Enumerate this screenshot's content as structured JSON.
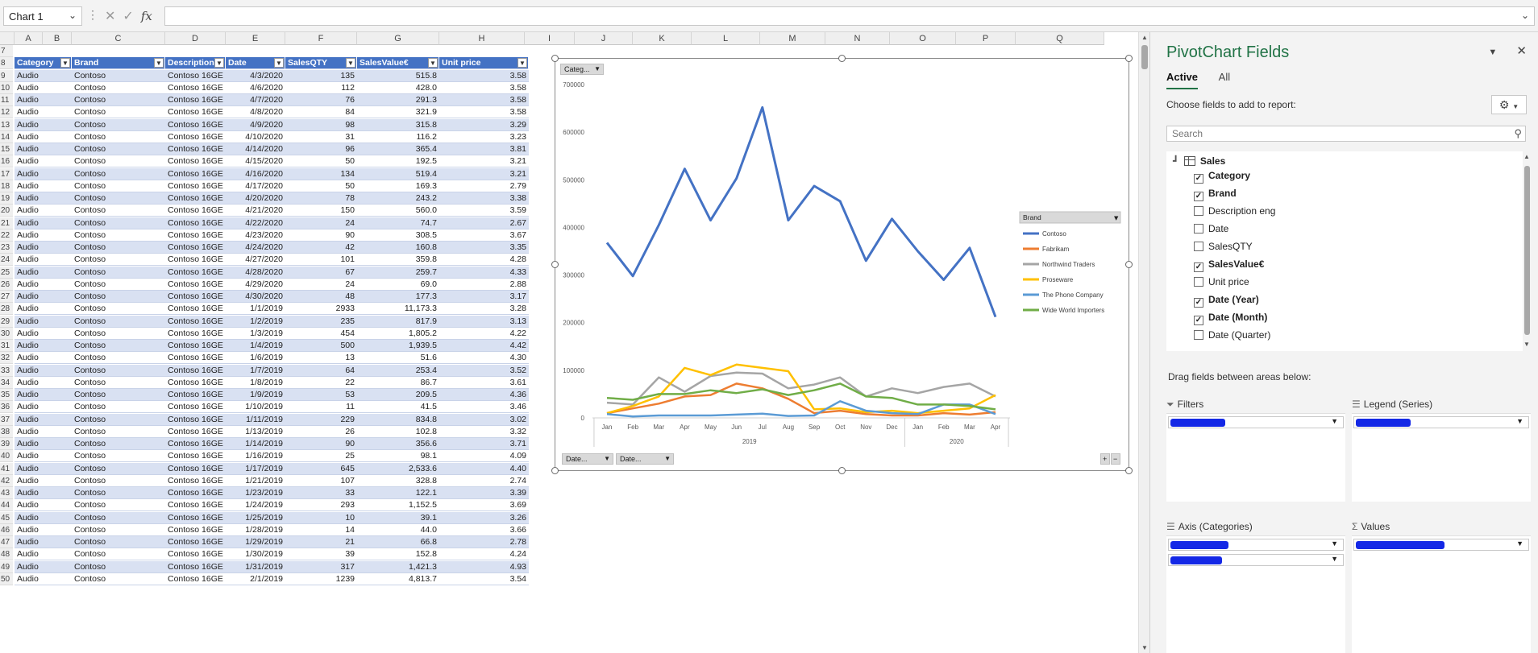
{
  "formula_bar": {
    "name_box": "Chart 1",
    "fx_label": "fx",
    "formula": ""
  },
  "columns": [
    "A",
    "B",
    "C",
    "D",
    "E",
    "F",
    "G",
    "H",
    "I",
    "J",
    "K",
    "L",
    "M",
    "N",
    "O",
    "P",
    "Q"
  ],
  "table": {
    "headers": [
      "Category",
      "Brand",
      "Description",
      "Date",
      "SalesQTY",
      "SalesValue€",
      "Unit price"
    ],
    "rows": [
      [
        "Audio",
        "Contoso",
        "Contoso 16GE",
        "4/3/2020",
        "135",
        "515.8",
        "3.58"
      ],
      [
        "Audio",
        "Contoso",
        "Contoso 16GE",
        "4/6/2020",
        "112",
        "428.0",
        "3.58"
      ],
      [
        "Audio",
        "Contoso",
        "Contoso 16GE",
        "4/7/2020",
        "76",
        "291.3",
        "3.58"
      ],
      [
        "Audio",
        "Contoso",
        "Contoso 16GE",
        "4/8/2020",
        "84",
        "321.9",
        "3.58"
      ],
      [
        "Audio",
        "Contoso",
        "Contoso 16GE",
        "4/9/2020",
        "98",
        "315.8",
        "3.29"
      ],
      [
        "Audio",
        "Contoso",
        "Contoso 16GE",
        "4/10/2020",
        "31",
        "116.2",
        "3.23"
      ],
      [
        "Audio",
        "Contoso",
        "Contoso 16GE",
        "4/14/2020",
        "96",
        "365.4",
        "3.81"
      ],
      [
        "Audio",
        "Contoso",
        "Contoso 16GE",
        "4/15/2020",
        "50",
        "192.5",
        "3.21"
      ],
      [
        "Audio",
        "Contoso",
        "Contoso 16GE",
        "4/16/2020",
        "134",
        "519.4",
        "3.21"
      ],
      [
        "Audio",
        "Contoso",
        "Contoso 16GE",
        "4/17/2020",
        "50",
        "169.3",
        "2.79"
      ],
      [
        "Audio",
        "Contoso",
        "Contoso 16GE",
        "4/20/2020",
        "78",
        "243.2",
        "3.38"
      ],
      [
        "Audio",
        "Contoso",
        "Contoso 16GE",
        "4/21/2020",
        "150",
        "560.0",
        "3.59"
      ],
      [
        "Audio",
        "Contoso",
        "Contoso 16GE",
        "4/22/2020",
        "24",
        "74.7",
        "2.67"
      ],
      [
        "Audio",
        "Contoso",
        "Contoso 16GE",
        "4/23/2020",
        "90",
        "308.5",
        "3.67"
      ],
      [
        "Audio",
        "Contoso",
        "Contoso 16GE",
        "4/24/2020",
        "42",
        "160.8",
        "3.35"
      ],
      [
        "Audio",
        "Contoso",
        "Contoso 16GE",
        "4/27/2020",
        "101",
        "359.8",
        "4.28"
      ],
      [
        "Audio",
        "Contoso",
        "Contoso 16GE",
        "4/28/2020",
        "67",
        "259.7",
        "4.33"
      ],
      [
        "Audio",
        "Contoso",
        "Contoso 16GE",
        "4/29/2020",
        "24",
        "69.0",
        "2.88"
      ],
      [
        "Audio",
        "Contoso",
        "Contoso 16GE",
        "4/30/2020",
        "48",
        "177.3",
        "3.17"
      ],
      [
        "Audio",
        "Contoso",
        "Contoso 16GE",
        "1/1/2019",
        "2933",
        "11,173.3",
        "3.28"
      ],
      [
        "Audio",
        "Contoso",
        "Contoso 16GE",
        "1/2/2019",
        "235",
        "817.9",
        "3.13"
      ],
      [
        "Audio",
        "Contoso",
        "Contoso 16GE",
        "1/3/2019",
        "454",
        "1,805.2",
        "4.22"
      ],
      [
        "Audio",
        "Contoso",
        "Contoso 16GE",
        "1/4/2019",
        "500",
        "1,939.5",
        "4.42"
      ],
      [
        "Audio",
        "Contoso",
        "Contoso 16GE",
        "1/6/2019",
        "13",
        "51.6",
        "4.30"
      ],
      [
        "Audio",
        "Contoso",
        "Contoso 16GE",
        "1/7/2019",
        "64",
        "253.4",
        "3.52"
      ],
      [
        "Audio",
        "Contoso",
        "Contoso 16GE",
        "1/8/2019",
        "22",
        "86.7",
        "3.61"
      ],
      [
        "Audio",
        "Contoso",
        "Contoso 16GE",
        "1/9/2019",
        "53",
        "209.5",
        "4.36"
      ],
      [
        "Audio",
        "Contoso",
        "Contoso 16GE",
        "1/10/2019",
        "11",
        "41.5",
        "3.46"
      ],
      [
        "Audio",
        "Contoso",
        "Contoso 16GE",
        "1/11/2019",
        "229",
        "834.8",
        "3.02"
      ],
      [
        "Audio",
        "Contoso",
        "Contoso 16GE",
        "1/13/2019",
        "26",
        "102.8",
        "3.32"
      ],
      [
        "Audio",
        "Contoso",
        "Contoso 16GE",
        "1/14/2019",
        "90",
        "356.6",
        "3.71"
      ],
      [
        "Audio",
        "Contoso",
        "Contoso 16GE",
        "1/16/2019",
        "25",
        "98.1",
        "4.09"
      ],
      [
        "Audio",
        "Contoso",
        "Contoso 16GE",
        "1/17/2019",
        "645",
        "2,533.6",
        "4.40"
      ],
      [
        "Audio",
        "Contoso",
        "Contoso 16GE",
        "1/21/2019",
        "107",
        "328.8",
        "2.74"
      ],
      [
        "Audio",
        "Contoso",
        "Contoso 16GE",
        "1/23/2019",
        "33",
        "122.1",
        "3.39"
      ],
      [
        "Audio",
        "Contoso",
        "Contoso 16GE",
        "1/24/2019",
        "293",
        "1,152.5",
        "3.69"
      ],
      [
        "Audio",
        "Contoso",
        "Contoso 16GE",
        "1/25/2019",
        "10",
        "39.1",
        "3.26"
      ],
      [
        "Audio",
        "Contoso",
        "Contoso 16GE",
        "1/28/2019",
        "14",
        "44.0",
        "3.66"
      ],
      [
        "Audio",
        "Contoso",
        "Contoso 16GE",
        "1/29/2019",
        "21",
        "66.8",
        "2.78"
      ],
      [
        "Audio",
        "Contoso",
        "Contoso 16GE",
        "1/30/2019",
        "39",
        "152.8",
        "4.24"
      ],
      [
        "Audio",
        "Contoso",
        "Contoso 16GE",
        "1/31/2019",
        "317",
        "1,421.3",
        "4.93"
      ],
      [
        "Audio",
        "Contoso",
        "Contoso 16GE",
        "2/1/2019",
        "1239",
        "4,813.7",
        "3.54"
      ]
    ]
  },
  "chart_data": {
    "type": "line",
    "categories": [
      "Jan",
      "Feb",
      "Mar",
      "Apr",
      "May",
      "Jun",
      "Jul",
      "Aug",
      "Sep",
      "Oct",
      "Nov",
      "Dec",
      "Jan",
      "Feb",
      "Mar",
      "Apr"
    ],
    "year_groups": [
      {
        "label": "2019",
        "count": 12
      },
      {
        "label": "2020",
        "count": 4
      }
    ],
    "ylim": [
      0,
      700000
    ],
    "y_ticks": [
      "0",
      "100000",
      "200000",
      "300000",
      "400000",
      "500000",
      "600000",
      "700000"
    ],
    "legend_title": "Brand",
    "legend_position": "right",
    "series": [
      {
        "name": "Contoso",
        "color": "#4472c4",
        "values": [
          368000,
          298000,
          405000,
          523000,
          415000,
          503000,
          652000,
          415000,
          487000,
          455000,
          330000,
          418000,
          350000,
          290000,
          357000,
          212000
        ]
      },
      {
        "name": "Fabrikam",
        "color": "#ed7d31",
        "values": [
          10000,
          20000,
          30000,
          45000,
          48000,
          72000,
          62000,
          40000,
          10000,
          15000,
          8000,
          5000,
          5000,
          10000,
          7000,
          12000
        ]
      },
      {
        "name": "Northwind Traders",
        "color": "#a5a5a5",
        "values": [
          32000,
          28000,
          85000,
          55000,
          88000,
          95000,
          93000,
          62000,
          70000,
          85000,
          45000,
          62000,
          52000,
          65000,
          72000,
          45000
        ]
      },
      {
        "name": "Proseware",
        "color": "#ffc000",
        "values": [
          10000,
          25000,
          45000,
          105000,
          90000,
          112000,
          105000,
          98000,
          18000,
          20000,
          12000,
          15000,
          10000,
          15000,
          20000,
          48000
        ]
      },
      {
        "name": "The Phone Company",
        "color": "#5b9bd5",
        "values": [
          8000,
          3000,
          5000,
          5000,
          5000,
          7000,
          9000,
          4000,
          5000,
          35000,
          15000,
          10000,
          8000,
          28000,
          28000,
          8000
        ]
      },
      {
        "name": "Wide World Importers",
        "color": "#70ad47",
        "values": [
          42000,
          38000,
          50000,
          50000,
          58000,
          52000,
          60000,
          48000,
          58000,
          72000,
          45000,
          42000,
          28000,
          28000,
          25000,
          18000
        ]
      }
    ],
    "field_buttons": {
      "category": "Categ...",
      "date1": "Date...",
      "date2": "Date..."
    },
    "zoom_buttons": [
      "+",
      "−"
    ]
  },
  "pane": {
    "title": "PivotChart Fields",
    "tabs": [
      {
        "label": "Active",
        "active": true
      },
      {
        "label": "All",
        "active": false
      }
    ],
    "choose_label": "Choose fields to add to report:",
    "search_placeholder": "Search",
    "table_name": "Sales",
    "fields": [
      {
        "label": "Category",
        "checked": true
      },
      {
        "label": "Brand",
        "checked": true
      },
      {
        "label": "Description eng",
        "checked": false
      },
      {
        "label": "Date",
        "checked": false
      },
      {
        "label": "SalesQTY",
        "checked": false
      },
      {
        "label": "SalesValue€",
        "checked": true
      },
      {
        "label": "Unit price",
        "checked": false
      },
      {
        "label": "Date (Year)",
        "checked": true
      },
      {
        "label": "Date (Month)",
        "checked": true
      },
      {
        "label": "Date (Quarter)",
        "checked": false
      }
    ],
    "drag_label": "Drag fields between areas below:",
    "areas": {
      "filters": "Filters",
      "legend": "Legend (Series)",
      "axis": "Axis (Categories)",
      "values": "Values"
    }
  }
}
